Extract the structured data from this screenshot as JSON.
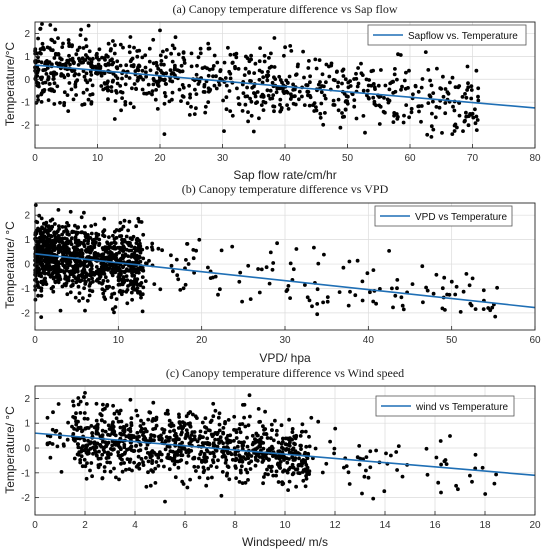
{
  "colors": {
    "points": "#000000",
    "fit_line": "#1f6fb5",
    "grid": "#dcdcdc",
    "axes": "#262626"
  },
  "chart_data": [
    {
      "type": "scatter",
      "title": "(a) Canopy temperature difference vs Sap flow",
      "xlabel": "Sap flow rate/cm/hr",
      "ylabel": "Temperature/°C",
      "xlim": [
        0,
        80
      ],
      "ylim": [
        -3,
        2.5
      ],
      "xticks": [
        0,
        10,
        20,
        30,
        40,
        50,
        60,
        70,
        80
      ],
      "yticks": [
        -2,
        -1,
        0,
        1,
        2
      ],
      "grid": true,
      "legend": {
        "placement": "top-right",
        "entries": [
          "Sapflow vs. Temperature"
        ]
      },
      "fit_line": {
        "x": [
          0,
          80
        ],
        "y": [
          0.62,
          -1.25
        ]
      },
      "scatter_summary": {
        "n_points": 900,
        "x_range": [
          0,
          71
        ],
        "trend_center": "follows fit line",
        "spread_sd": 0.75
      }
    },
    {
      "type": "scatter",
      "title": "(b) Canopy temperature difference vs VPD",
      "xlabel": "VPD/ hpa",
      "ylabel": "Temperature/ °C",
      "xlim": [
        0,
        60
      ],
      "ylim": [
        -2.7,
        2.5
      ],
      "xticks": [
        0,
        10,
        20,
        30,
        40,
        50,
        60
      ],
      "yticks": [
        -2,
        -1,
        0,
        1,
        2
      ],
      "grid": true,
      "legend": {
        "placement": "top-right",
        "entries": [
          "VPD vs Temperature"
        ]
      },
      "fit_line": {
        "x": [
          0,
          60
        ],
        "y": [
          0.42,
          -1.78
        ]
      },
      "scatter_summary": {
        "n_points": 1200,
        "x_range": [
          0,
          57
        ],
        "dense_region_x": [
          0,
          13
        ],
        "spread_sd": 0.7
      }
    },
    {
      "type": "scatter",
      "title": "(c) Canopy temperature difference vs Wind speed",
      "xlabel": "Windspeed/ m/s",
      "ylabel": "Temperature/ °C",
      "xlim": [
        0,
        20
      ],
      "ylim": [
        -2.7,
        2.5
      ],
      "xticks": [
        0,
        2,
        4,
        6,
        8,
        10,
        12,
        14,
        16,
        18,
        20
      ],
      "yticks": [
        -2,
        -1,
        0,
        1,
        2
      ],
      "grid": true,
      "legend": {
        "placement": "top-right",
        "entries": [
          "wind vs Temperature"
        ]
      },
      "fit_line": {
        "x": [
          0,
          20
        ],
        "y": [
          0.6,
          -1.1
        ]
      },
      "scatter_summary": {
        "n_points": 1000,
        "x_range": [
          0.5,
          18.5
        ],
        "dense_region_x": [
          1.5,
          11
        ],
        "spread_sd": 0.7
      }
    }
  ]
}
